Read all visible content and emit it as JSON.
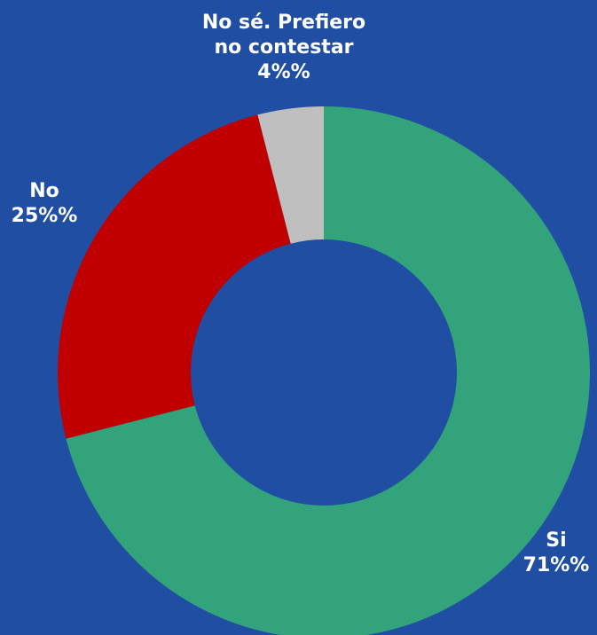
{
  "chart_data": {
    "type": "pie",
    "donut": true,
    "slices": [
      {
        "label": "Si",
        "value": 71,
        "value_text": "71%%",
        "color": "#32a37b"
      },
      {
        "label": "No",
        "value": 25,
        "value_text": "25%%",
        "color": "#c00000"
      },
      {
        "label_lines": [
          "No sé. Prefiero",
          "no contestar"
        ],
        "value": 4,
        "value_text": "4%%",
        "color": "#bfbfbf"
      }
    ]
  }
}
